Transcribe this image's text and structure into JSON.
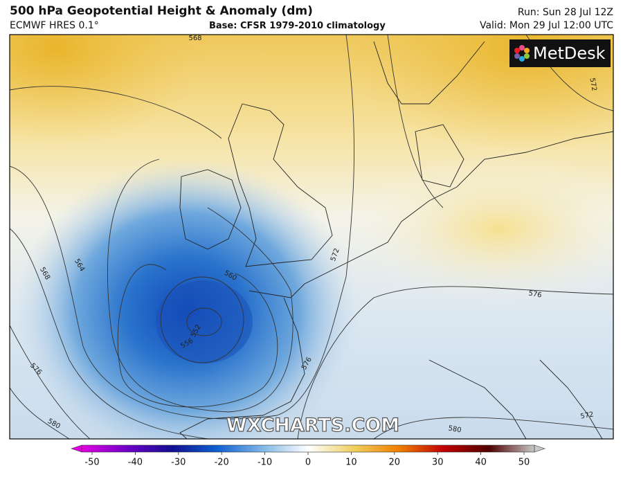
{
  "header": {
    "title": "500 hPa Geopotential Height & Anomaly (dm)",
    "model": "ECMWF HRES 0.1°",
    "base": "Base: CFSR 1979-2010 climatology",
    "run": "Run: Sun 28 Jul 12Z",
    "valid": "Valid: Mon 29 Jul 12:00 UTC"
  },
  "logo": "MetDesk",
  "watermark": "WXCHARTS.COM",
  "contour_labels": [
    568,
    564,
    568,
    576,
    580,
    560,
    556,
    552,
    572,
    576,
    576,
    572,
    580,
    572
  ],
  "colorbar": {
    "range": [
      -50,
      50
    ],
    "ticks": [
      -50,
      -40,
      -30,
      -20,
      -10,
      0,
      10,
      20,
      30,
      40,
      50
    ]
  }
}
